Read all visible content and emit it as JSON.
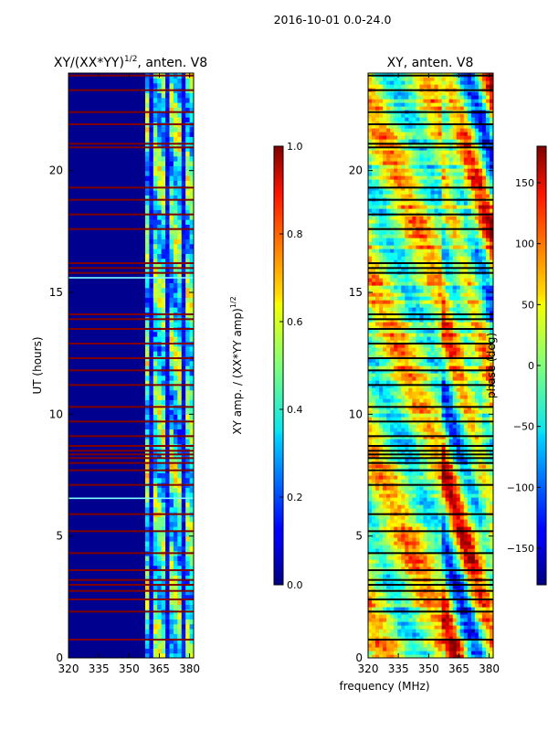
{
  "suptitle": "2016-10-01 0.0-24.0",
  "colors": {
    "background": "#00008f",
    "flag_line": "#800000",
    "phase_flag_line": "#000000",
    "axes": "#000000"
  },
  "chart_data": [
    {
      "type": "heatmap",
      "panel": "amplitude-ratio",
      "title_main": "XY/(XX*YY)",
      "title_sup": "1/2",
      "title_tail": ", anten. V8",
      "xlabel": "",
      "ylabel": "UT (hours)",
      "xlim": [
        320,
        382
      ],
      "ylim": [
        0,
        24
      ],
      "xticks": [
        "320",
        "335",
        "350",
        "365",
        "380"
      ],
      "xtick_values": [
        320,
        335,
        350,
        365,
        380
      ],
      "yticks": [
        "0",
        "5",
        "10",
        "15",
        "20"
      ],
      "ytick_values": [
        0,
        5,
        10,
        15,
        20
      ],
      "colorbar": {
        "label_main": "XY amp. / (XX*YY amp)",
        "label_sup": "1/2",
        "range": [
          0.0,
          1.0
        ],
        "ticks": [
          "0.0",
          "0.2",
          "0.4",
          "0.6",
          "0.8",
          "1.0"
        ],
        "tick_values": [
          0.0,
          0.2,
          0.4,
          0.6,
          0.8,
          1.0
        ],
        "colormap": "jet"
      },
      "signal_band_mhz": [
        359,
        382
      ],
      "flagged_hours": [
        0.75,
        1.9,
        2.4,
        2.75,
        3.0,
        3.2,
        3.6,
        4.3,
        5.2,
        5.9,
        7.1,
        7.7,
        8.0,
        8.2,
        8.35,
        8.5,
        8.7,
        9.1,
        9.7,
        10.3,
        11.2,
        11.8,
        12.3,
        12.9,
        13.5,
        13.9,
        14.1,
        15.8,
        16.0,
        16.2,
        17.6,
        18.2,
        18.8,
        19.3,
        20.95,
        21.1,
        21.9,
        22.4,
        23.3,
        23.9
      ],
      "bright_hours": [
        6.55,
        15.6
      ]
    },
    {
      "type": "heatmap",
      "panel": "phase",
      "title": "XY, anten. V8",
      "xlabel": "frequency (MHz)",
      "ylabel": "",
      "xlim": [
        320,
        382
      ],
      "ylim": [
        0,
        24
      ],
      "xticks": [
        "320",
        "335",
        "350",
        "365",
        "380"
      ],
      "xtick_values": [
        320,
        335,
        350,
        365,
        380
      ],
      "yticks": [
        "0",
        "5",
        "10",
        "15",
        "20"
      ],
      "ytick_values": [
        0,
        5,
        10,
        15,
        20
      ],
      "colorbar": {
        "label": "phase (deg)",
        "range": [
          -180,
          180
        ],
        "ticks": [
          "−150",
          "−100",
          "−50",
          "0",
          "50",
          "100",
          "150"
        ],
        "tick_values": [
          -150,
          -100,
          -50,
          0,
          50,
          100,
          150
        ],
        "colormap": "jet"
      },
      "flagged_hours": [
        0.75,
        1.9,
        2.4,
        2.75,
        3.0,
        3.2,
        3.6,
        4.3,
        5.2,
        5.9,
        7.1,
        7.7,
        8.0,
        8.2,
        8.35,
        8.5,
        8.7,
        9.1,
        9.7,
        10.3,
        11.2,
        11.8,
        12.3,
        12.9,
        13.5,
        13.9,
        14.1,
        15.8,
        16.0,
        16.2,
        17.6,
        18.2,
        18.8,
        19.3,
        20.95,
        21.1,
        21.9,
        22.4,
        23.3,
        23.9
      ]
    }
  ]
}
